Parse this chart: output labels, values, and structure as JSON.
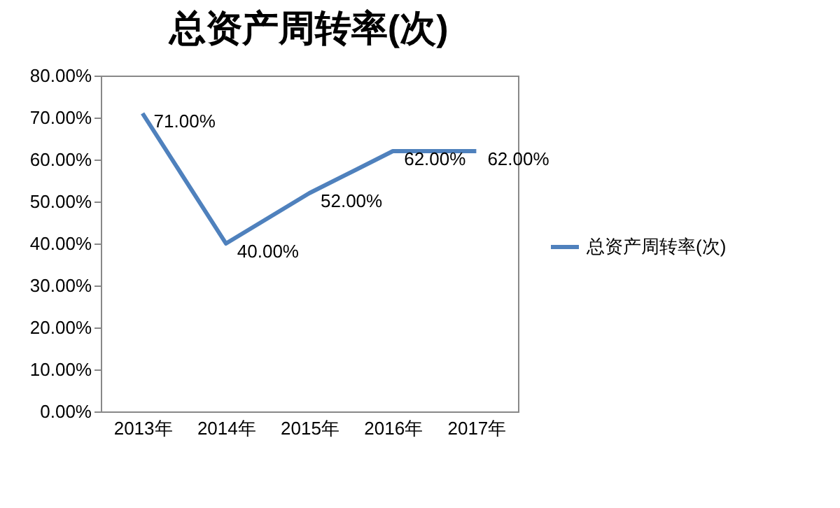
{
  "chart_data": {
    "type": "line",
    "title": "总资产周转率(次)",
    "categories": [
      "2013年",
      "2014年",
      "2015年",
      "2016年",
      "2017年"
    ],
    "series": [
      {
        "name": "总资产周转率(次)",
        "color": "#4f81bd",
        "values": [
          71,
          40,
          52,
          62,
          62
        ],
        "value_labels": [
          "71.00%",
          "40.00%",
          "52.00%",
          "62.00%",
          "62.00%"
        ]
      }
    ],
    "ylim": [
      0,
      80
    ],
    "yticks": [
      {
        "value": 0,
        "label": "0.00%"
      },
      {
        "value": 10,
        "label": "10.00%"
      },
      {
        "value": 20,
        "label": "20.00%"
      },
      {
        "value": 30,
        "label": "30.00%"
      },
      {
        "value": 40,
        "label": "40.00%"
      },
      {
        "value": 50,
        "label": "50.00%"
      },
      {
        "value": 60,
        "label": "60.00%"
      },
      {
        "value": 70,
        "label": "70.00%"
      },
      {
        "value": 80,
        "label": "80.00%"
      }
    ],
    "legend": "right"
  }
}
